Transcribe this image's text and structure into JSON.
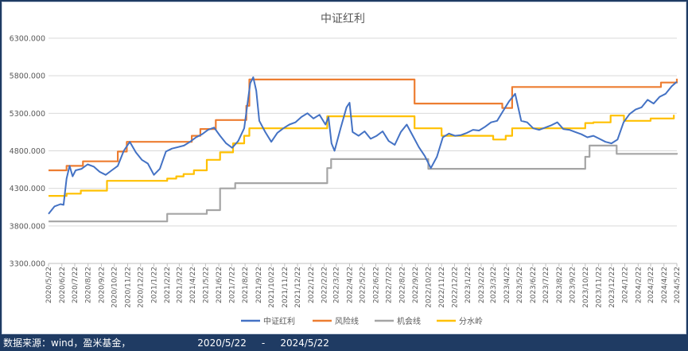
{
  "footer": {
    "source": "数据来源：wind，盈米基金，",
    "date_start": "2020/5/22",
    "date_sep": "-",
    "date_end": "2024/5/22"
  },
  "chart_data": {
    "type": "line",
    "title": "中证红利",
    "xlabel": "",
    "ylabel": "",
    "ylim": [
      3300,
      6300
    ],
    "yticks": [
      "3300.000",
      "3800.000",
      "4300.000",
      "4800.000",
      "5300.000",
      "5800.000",
      "6300.000"
    ],
    "ytick_values": [
      3300,
      3800,
      4300,
      4800,
      5300,
      5800,
      6300
    ],
    "x_start": "2020/5/22",
    "x_end": "2024/5/22",
    "xticks": [
      "2020/5/22",
      "2020/6/22",
      "2020/7/22",
      "2020/8/22",
      "2020/9/22",
      "2020/10/22",
      "2020/11/22",
      "2020/12/22",
      "2021/1/22",
      "2021/2/22",
      "2021/3/22",
      "2021/4/22",
      "2021/5/22",
      "2021/6/22",
      "2021/7/22",
      "2021/8/22",
      "2021/9/22",
      "2021/10/22",
      "2021/11/22",
      "2021/12/22",
      "2022/1/22",
      "2022/2/22",
      "2022/3/22",
      "2022/4/22",
      "2022/5/22",
      "2022/6/22",
      "2022/7/22",
      "2022/8/22",
      "2022/9/22",
      "2022/10/22",
      "2022/11/22",
      "2022/12/22",
      "2023/1/22",
      "2023/2/22",
      "2023/3/22",
      "2023/4/22",
      "2023/5/22",
      "2023/6/22",
      "2023/7/22",
      "2023/8/22",
      "2023/9/22",
      "2023/10/22",
      "2023/11/22",
      "2023/12/22",
      "2024/1/22",
      "2024/2/22",
      "2024/3/22",
      "2024/4/22",
      "2024/5/22"
    ],
    "grid": true,
    "legend_position": "bottom",
    "series": [
      {
        "name": "中证红利",
        "color": "#4472c4",
        "style": "line",
        "points": [
          [
            "2020/5/22",
            3960
          ],
          [
            "2020/6/5",
            4060
          ],
          [
            "2020/6/19",
            4090
          ],
          [
            "2020/6/26",
            4080
          ],
          [
            "2020/7/3",
            4430
          ],
          [
            "2020/7/10",
            4600
          ],
          [
            "2020/7/17",
            4460
          ],
          [
            "2020/7/24",
            4540
          ],
          [
            "2020/8/7",
            4560
          ],
          [
            "2020/8/21",
            4620
          ],
          [
            "2020/9/4",
            4590
          ],
          [
            "2020/9/18",
            4520
          ],
          [
            "2020/10/2",
            4480
          ],
          [
            "2020/10/16",
            4540
          ],
          [
            "2020/10/30",
            4600
          ],
          [
            "2020/11/13",
            4800
          ],
          [
            "2020/11/27",
            4920
          ],
          [
            "2020/12/11",
            4780
          ],
          [
            "2020/12/25",
            4680
          ],
          [
            "2021/1/8",
            4630
          ],
          [
            "2021/1/22",
            4480
          ],
          [
            "2021/2/5",
            4560
          ],
          [
            "2021/2/19",
            4790
          ],
          [
            "2021/3/5",
            4830
          ],
          [
            "2021/3/19",
            4850
          ],
          [
            "2021/4/2",
            4870
          ],
          [
            "2021/4/16",
            4920
          ],
          [
            "2021/4/30",
            4980
          ],
          [
            "2021/5/14",
            5020
          ],
          [
            "2021/5/28",
            5080
          ],
          [
            "2021/6/11",
            5110
          ],
          [
            "2021/6/25",
            5000
          ],
          [
            "2021/7/9",
            4900
          ],
          [
            "2021/7/23",
            4840
          ],
          [
            "2021/8/6",
            4930
          ],
          [
            "2021/8/20",
            5100
          ],
          [
            "2021/9/3",
            5700
          ],
          [
            "2021/9/10",
            5780
          ],
          [
            "2021/9/17",
            5600
          ],
          [
            "2021/9/24",
            5200
          ],
          [
            "2021/10/8",
            5050
          ],
          [
            "2021/10/22",
            4920
          ],
          [
            "2021/11/5",
            5040
          ],
          [
            "2021/11/19",
            5100
          ],
          [
            "2021/12/3",
            5150
          ],
          [
            "2021/12/17",
            5180
          ],
          [
            "2021/12/31",
            5250
          ],
          [
            "2022/1/14",
            5300
          ],
          [
            "2022/1/28",
            5230
          ],
          [
            "2022/2/11",
            5280
          ],
          [
            "2022/2/25",
            5150
          ],
          [
            "2022/3/4",
            5250
          ],
          [
            "2022/3/11",
            4900
          ],
          [
            "2022/3/18",
            4800
          ],
          [
            "2022/4/1",
            5100
          ],
          [
            "2022/4/15",
            5380
          ],
          [
            "2022/4/22",
            5440
          ],
          [
            "2022/4/29",
            5050
          ],
          [
            "2022/5/13",
            5000
          ],
          [
            "2022/5/27",
            5060
          ],
          [
            "2022/6/10",
            4960
          ],
          [
            "2022/6/24",
            5000
          ],
          [
            "2022/7/8",
            5060
          ],
          [
            "2022/7/22",
            4930
          ],
          [
            "2022/8/5",
            4880
          ],
          [
            "2022/8/19",
            5050
          ],
          [
            "2022/9/2",
            5150
          ],
          [
            "2022/9/16",
            5000
          ],
          [
            "2022/9/30",
            4850
          ],
          [
            "2022/10/14",
            4730
          ],
          [
            "2022/10/28",
            4570
          ],
          [
            "2022/11/11",
            4720
          ],
          [
            "2022/11/25",
            4980
          ],
          [
            "2022/12/9",
            5030
          ],
          [
            "2022/12/23",
            5000
          ],
          [
            "2023/1/6",
            5010
          ],
          [
            "2023/1/20",
            5040
          ],
          [
            "2023/2/3",
            5080
          ],
          [
            "2023/2/17",
            5070
          ],
          [
            "2023/3/3",
            5120
          ],
          [
            "2023/3/17",
            5180
          ],
          [
            "2023/3/31",
            5200
          ],
          [
            "2023/4/14",
            5330
          ],
          [
            "2023/4/28",
            5460
          ],
          [
            "2023/5/12",
            5560
          ],
          [
            "2023/5/26",
            5200
          ],
          [
            "2023/6/9",
            5180
          ],
          [
            "2023/6/23",
            5100
          ],
          [
            "2023/7/7",
            5080
          ],
          [
            "2023/7/21",
            5110
          ],
          [
            "2023/8/4",
            5140
          ],
          [
            "2023/8/18",
            5180
          ],
          [
            "2023/9/1",
            5090
          ],
          [
            "2023/9/15",
            5080
          ],
          [
            "2023/9/29",
            5050
          ],
          [
            "2023/10/13",
            5020
          ],
          [
            "2023/10/27",
            4980
          ],
          [
            "2023/11/10",
            5000
          ],
          [
            "2023/11/24",
            4960
          ],
          [
            "2023/12/8",
            4920
          ],
          [
            "2023/12/22",
            4900
          ],
          [
            "2024/1/5",
            4950
          ],
          [
            "2024/1/19",
            5180
          ],
          [
            "2024/2/2",
            5290
          ],
          [
            "2024/2/16",
            5350
          ],
          [
            "2024/3/1",
            5380
          ],
          [
            "2024/3/15",
            5480
          ],
          [
            "2024/3/29",
            5430
          ],
          [
            "2024/4/12",
            5520
          ],
          [
            "2024/4/26",
            5560
          ],
          [
            "2024/5/10",
            5660
          ],
          [
            "2024/5/22",
            5720
          ]
        ]
      },
      {
        "name": "风险线",
        "color": "#ed7d31",
        "style": "step",
        "points": [
          [
            "2020/5/22",
            4540
          ],
          [
            "2020/7/3",
            4600
          ],
          [
            "2020/8/10",
            4660
          ],
          [
            "2020/10/30",
            4790
          ],
          [
            "2020/11/20",
            4920
          ],
          [
            "2021/4/20",
            5000
          ],
          [
            "2021/5/10",
            5090
          ],
          [
            "2021/6/15",
            5210
          ],
          [
            "2021/8/25",
            5400
          ],
          [
            "2021/9/1",
            5750
          ],
          [
            "2022/9/20",
            5430
          ],
          [
            "2023/4/12",
            5370
          ],
          [
            "2023/5/5",
            5650
          ],
          [
            "2024/4/15",
            5710
          ],
          [
            "2024/5/22",
            5760
          ]
        ]
      },
      {
        "name": "机会线",
        "color": "#a5a5a5",
        "style": "step",
        "points": [
          [
            "2020/5/22",
            3860
          ],
          [
            "2021/2/22",
            3960
          ],
          [
            "2021/5/25",
            4010
          ],
          [
            "2021/6/25",
            4300
          ],
          [
            "2021/7/30",
            4370
          ],
          [
            "2022/3/1",
            4570
          ],
          [
            "2022/3/10",
            4690
          ],
          [
            "2022/10/22",
            4560
          ],
          [
            "2023/10/22",
            4720
          ],
          [
            "2023/11/1",
            4870
          ],
          [
            "2024/1/3",
            4760
          ],
          [
            "2024/5/22",
            4770
          ]
        ]
      },
      {
        "name": "分水岭",
        "color": "#ffc000",
        "style": "step",
        "points": [
          [
            "2020/5/22",
            4200
          ],
          [
            "2020/7/3",
            4230
          ],
          [
            "2020/8/5",
            4270
          ],
          [
            "2020/10/5",
            4400
          ],
          [
            "2021/2/22",
            4430
          ],
          [
            "2021/3/15",
            4460
          ],
          [
            "2021/4/1",
            4490
          ],
          [
            "2021/4/25",
            4540
          ],
          [
            "2021/5/25",
            4680
          ],
          [
            "2021/6/25",
            4780
          ],
          [
            "2021/7/25",
            4900
          ],
          [
            "2021/8/20",
            5000
          ],
          [
            "2021/9/1",
            5100
          ],
          [
            "2022/3/1",
            5260
          ],
          [
            "2022/9/20",
            5100
          ],
          [
            "2022/11/22",
            5000
          ],
          [
            "2023/3/22",
            4950
          ],
          [
            "2023/4/20",
            5000
          ],
          [
            "2023/5/5",
            5100
          ],
          [
            "2023/10/22",
            5170
          ],
          [
            "2023/11/10",
            5180
          ],
          [
            "2023/12/20",
            5270
          ],
          [
            "2024/1/20",
            5200
          ],
          [
            "2024/3/22",
            5230
          ],
          [
            "2024/5/15",
            5280
          ]
        ]
      }
    ]
  }
}
